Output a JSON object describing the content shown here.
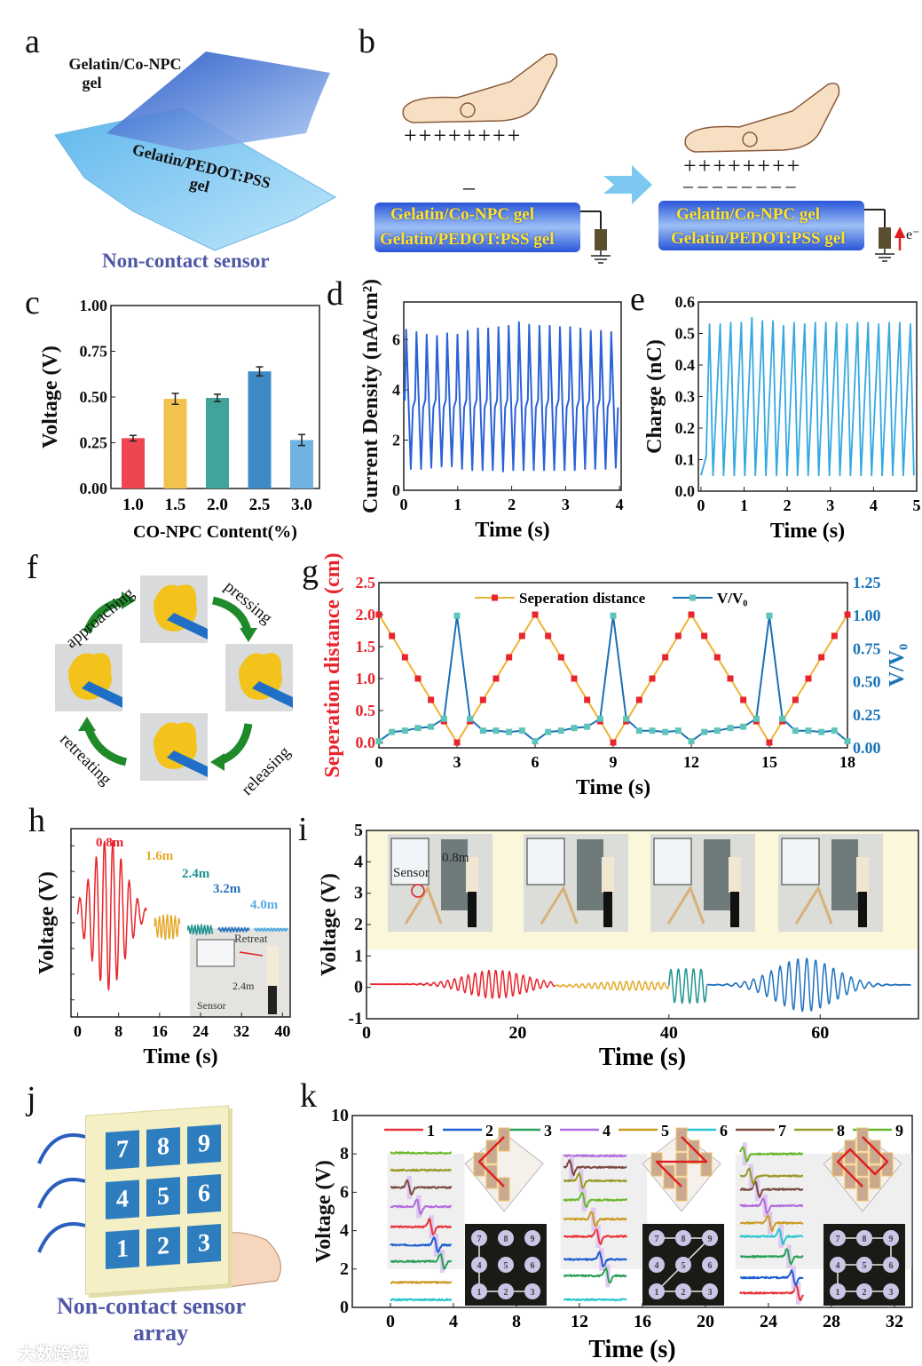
{
  "panel_labels": {
    "a": "a",
    "b": "b",
    "c": "c",
    "d": "d",
    "e": "e",
    "f": "f",
    "g": "g",
    "h": "h",
    "i": "i",
    "j": "j",
    "k": "k"
  },
  "a": {
    "top_gel_line1": "Gelatin/Co-NPC",
    "top_gel_line2": "gel",
    "bottom_gel_line1": "Gelatin/PEDOT:PSS",
    "bottom_gel_line2": "gel",
    "caption": "Non-contact sensor"
  },
  "b": {
    "plus_left": "++++++++",
    "minus_left": "–",
    "top_layer": "Gelatin/Co-NPC gel",
    "bottom_layer": "Gelatin/PEDOT:PSS gel",
    "plus_right": "++++++++",
    "minus_right": "– – – – – – – –",
    "electron": "e⁻"
  },
  "f": {
    "approaching": "approaching",
    "pressing": "pressing",
    "releasing": "releasing",
    "retreating": "retreating"
  },
  "h_inset": {
    "retreat": "Retreat",
    "distance": "2.4m",
    "sensor": "Sensor"
  },
  "i_inset": {
    "distance": "0.8m",
    "sensor": "Sensor"
  },
  "j": {
    "keys": [
      "7",
      "8",
      "9",
      "4",
      "5",
      "6",
      "1",
      "2",
      "3"
    ],
    "caption_line1": "Non-contact sensor",
    "caption_line2": "array"
  },
  "watermark": "大数跨境",
  "colors": {
    "caption": "#4f57a6",
    "red": "#e8242c",
    "blue": "#1a74b8"
  },
  "chart_data": [
    {
      "id": "c",
      "type": "bar",
      "categories": [
        "1.0",
        "1.5",
        "2.0",
        "2.5",
        "3.0"
      ],
      "values": [
        0.275,
        0.49,
        0.495,
        0.64,
        0.265
      ],
      "errors": [
        0.015,
        0.03,
        0.02,
        0.025,
        0.03
      ],
      "colors": [
        "#ee4650",
        "#f2c14e",
        "#42a39a",
        "#3e8ac6",
        "#6fb3e3"
      ],
      "xlabel": "CO-NPC Content(%)",
      "ylabel": "Voltage (V)",
      "ylim": [
        0,
        1
      ],
      "yticks": [
        "0.00",
        "0.25",
        "0.50",
        "0.75",
        "1.00"
      ]
    },
    {
      "id": "d",
      "type": "line",
      "xlabel": "Time (s)",
      "ylabel": "Current Density (nA/cm²)",
      "xlim": [
        0,
        4.03
      ],
      "ylim": [
        0,
        7.5
      ],
      "xticks": [
        "0",
        "1",
        "2",
        "3",
        "4"
      ],
      "yticks": [
        "0",
        "2",
        "4",
        "6"
      ],
      "color": "#2b62d6",
      "period": 0.19,
      "plateau": 3.6,
      "peaks": [
        6.4,
        6.3,
        6.2,
        6.15,
        6.25,
        6.2,
        6.35,
        6.45,
        6.45,
        6.5,
        6.55,
        6.7,
        6.6,
        6.55,
        6.55,
        6.5,
        6.5,
        6.45,
        6.35,
        6.35,
        6.3
      ],
      "troughs": [
        0.85,
        0.85,
        0.9,
        0.95,
        0.95,
        0.85,
        0.8,
        0.8,
        0.8,
        0.75,
        0.8,
        0.8,
        0.8,
        0.8,
        0.8,
        0.8,
        0.8,
        0.85,
        0.85,
        0.85,
        0.9
      ]
    },
    {
      "id": "e",
      "type": "line",
      "xlabel": "Time (s)",
      "ylabel": "Charge (nC)",
      "xlim": [
        -0.06,
        5
      ],
      "ylim": [
        0,
        0.6
      ],
      "xticks": [
        "0",
        "1",
        "2",
        "3",
        "4",
        "5"
      ],
      "yticks": [
        "0.0",
        "0.1",
        "0.2",
        "0.3",
        "0.4",
        "0.5",
        "0.6"
      ],
      "color": "#35a8e0",
      "period": 0.245,
      "start": 0.05,
      "peaks": [
        0.53,
        0.53,
        0.535,
        0.535,
        0.55,
        0.54,
        0.54,
        0.525,
        0.535,
        0.53,
        0.535,
        0.535,
        0.535,
        0.53,
        0.535,
        0.535,
        0.53,
        0.535,
        0.535,
        0.53
      ],
      "trough": 0.05
    },
    {
      "id": "g",
      "type": "line",
      "xlabel": "Time (s)",
      "ylabel": "Seperation distance (cm)",
      "ylabel_right": "V/V₀",
      "xlim": [
        0,
        18
      ],
      "ylim": [
        -0.083,
        2.5
      ],
      "ylim_right": [
        0,
        1.25
      ],
      "xticks": [
        "0",
        "3",
        "6",
        "9",
        "12",
        "15",
        "18"
      ],
      "yticks": [
        "0.0",
        "0.5",
        "1.0",
        "1.5",
        "2.0",
        "2.5"
      ],
      "yticks_right": [
        "0.00",
        "0.25",
        "0.50",
        "0.75",
        "1.00",
        "1.25"
      ],
      "legend_position": "top-center",
      "x": [
        0,
        0.5,
        1,
        1.5,
        2,
        2.5,
        3,
        3.5,
        4,
        4.5,
        5,
        5.5,
        6,
        6.5,
        7,
        7.5,
        8,
        8.5,
        9,
        9.5,
        10,
        10.5,
        11,
        11.5,
        12,
        12.5,
        13,
        13.5,
        14,
        14.5,
        15,
        15.5,
        16,
        16.5,
        17,
        17.5,
        18
      ],
      "series": [
        {
          "name": "Seperation distance",
          "axis": "left",
          "color": "#f0b232",
          "marker_color": "#e8242c",
          "values": [
            2,
            1.667,
            1.333,
            1,
            0.667,
            0.333,
            0,
            0.333,
            0.667,
            1,
            1.333,
            1.667,
            2,
            1.667,
            1.333,
            1,
            0.667,
            0.333,
            0,
            0.333,
            0.667,
            1,
            1.333,
            1.667,
            2,
            1.667,
            1.333,
            1,
            0.667,
            0.333,
            0,
            0.333,
            0.667,
            1,
            1.333,
            1.667,
            2
          ]
        },
        {
          "name": "V/V₀",
          "axis": "right",
          "color": "#1a6fb5",
          "marker_color": "#5ec4b8",
          "values": [
            0.05,
            0.12,
            0.13,
            0.15,
            0.16,
            0.22,
            1.0,
            0.22,
            0.13,
            0.13,
            0.12,
            0.13,
            0.05,
            0.12,
            0.13,
            0.15,
            0.16,
            0.22,
            1.0,
            0.22,
            0.13,
            0.13,
            0.12,
            0.13,
            0.05,
            0.12,
            0.13,
            0.15,
            0.16,
            0.22,
            1.0,
            0.22,
            0.13,
            0.13,
            0.12,
            0.13,
            0.05
          ]
        }
      ]
    },
    {
      "id": "h",
      "type": "line",
      "xlabel": "Time (s)",
      "ylabel": "Voltage (V)",
      "xlim": [
        -1.3,
        41.5
      ],
      "ylim": [
        -1.1,
        1.1
      ],
      "xticks": [
        "0",
        "8",
        "16",
        "24",
        "32",
        "40"
      ],
      "series": [
        {
          "name": "0.8m",
          "color": "#e8242c",
          "t0": 0,
          "t1": 13.5,
          "freq": 0.62,
          "amp": 0.88,
          "offset": 0.1,
          "center": 6,
          "width": 4.5
        },
        {
          "name": "1.6m",
          "color": "#e6a92a",
          "t0": 15,
          "t1": 20,
          "freq": 1.3,
          "amp": 0.14,
          "offset": -0.05,
          "center": 17.5,
          "width": 4
        },
        {
          "name": "2.4m",
          "color": "#1f9490",
          "t0": 21.5,
          "t1": 26.5,
          "freq": 1.6,
          "amp": 0.05,
          "offset": -0.08,
          "center": 24,
          "width": 5
        },
        {
          "name": "3.2m",
          "color": "#2a72c0",
          "t0": 27.5,
          "t1": 33.5,
          "freq": 1.6,
          "amp": 0.02,
          "offset": -0.08,
          "center": 30,
          "width": 5
        },
        {
          "name": "4.0m",
          "color": "#5aaee0",
          "t0": 34.5,
          "t1": 41,
          "freq": 1.6,
          "amp": 0.01,
          "offset": -0.08,
          "center": 37,
          "width": 5
        }
      ]
    },
    {
      "id": "i",
      "type": "line",
      "xlabel": "Time (s)",
      "ylabel": "Voltage (V)",
      "xlim": [
        0,
        73
      ],
      "ylim": [
        -1,
        5
      ],
      "xticks": [
        "0",
        "20",
        "40",
        "60"
      ],
      "yticks": [
        "-1",
        "0",
        "1",
        "2",
        "3",
        "4",
        "5"
      ],
      "series": [
        {
          "name": "segment-1",
          "color": "#e8242c",
          "t0": 0.5,
          "t1": 25,
          "freq": 1.1,
          "amp": 0.45,
          "offset": 0.1,
          "center": 17,
          "width": 5.5
        },
        {
          "name": "segment-2",
          "color": "#e6a92a",
          "t0": 25,
          "t1": 40,
          "freq": 1.2,
          "amp": 0.14,
          "offset": 0.05,
          "center": 35,
          "width": 7
        },
        {
          "name": "segment-3",
          "color": "#1f9490",
          "t0": 40,
          "t1": 45,
          "freq": 1.0,
          "amp": 0.55,
          "offset": 0.05,
          "center": 42.5,
          "width": 9
        },
        {
          "name": "segment-4",
          "color": "#1f72bf",
          "t0": 45,
          "t1": 72,
          "freq": 0.85,
          "amp": 0.85,
          "offset": 0.08,
          "center": 58,
          "width": 5.5
        }
      ]
    },
    {
      "id": "k",
      "type": "line",
      "xlabel": "Time (s)",
      "ylabel": "Voltage (V)",
      "xlim": [
        -2.42,
        33.13
      ],
      "ylim": [
        0,
        10
      ],
      "xticks": [
        "0",
        "4",
        "8",
        "12",
        "16",
        "20",
        "24",
        "28",
        "32"
      ],
      "yticks": [
        "0",
        "2",
        "4",
        "6",
        "8",
        "10"
      ],
      "channels": [
        {
          "name": "1",
          "color": "#e8333a"
        },
        {
          "name": "2",
          "color": "#1f5fd1"
        },
        {
          "name": "3",
          "color": "#2aa05a"
        },
        {
          "name": "4",
          "color": "#b06be0"
        },
        {
          "name": "5",
          "color": "#c99a1f"
        },
        {
          "name": "6",
          "color": "#2ac6d0"
        },
        {
          "name": "7",
          "color": "#7a4a42"
        },
        {
          "name": "8",
          "color": "#9a9a2a"
        },
        {
          "name": "9",
          "color": "#6ab82a"
        }
      ],
      "segments": [
        {
          "t0": 0,
          "t1": 3.9,
          "baselines": {
            "9": 8.05,
            "8": 7.15,
            "7": 6.25,
            "4": 5.25,
            "1": 4.2,
            "2": 3.25,
            "3": 2.4,
            "5": 1.3,
            "6": 0.4
          },
          "pulses": {
            "7": 1.2,
            "4": 1.8,
            "1": 2.6,
            "2": 2.9,
            "3": 3.3
          },
          "path": [
            "7",
            "4",
            "1",
            "2",
            "3"
          ]
        },
        {
          "t0": 11,
          "t1": 15,
          "baselines": {
            "4": 7.9,
            "7": 7.3,
            "8": 6.6,
            "9": 5.6,
            "5": 4.6,
            "1": 3.7,
            "2": 2.5,
            "3": 1.65,
            "6": 0.4
          },
          "pulses": {
            "7": 11.5,
            "8": 12.1,
            "9": 12.3,
            "5": 12.9,
            "1": 13.2,
            "2": 13.4,
            "3": 13.8
          },
          "path": [
            "7",
            "8",
            "9",
            "5",
            "1",
            "2",
            "3"
          ]
        },
        {
          "t0": 22.2,
          "t1": 26.2,
          "baselines": {
            "9": 8.0,
            "8": 6.85,
            "7": 6.15,
            "4": 5.3,
            "5": 4.4,
            "6": 3.7,
            "3": 2.65,
            "2": 1.55,
            "1": 0.75
          },
          "pulses": {
            "9": 22.5,
            "8": 22.9,
            "7": 23.3,
            "4": 23.8,
            "5": 24.1,
            "6": 24.8,
            "3": 25.3,
            "2": 25.6,
            "1": 25.9
          },
          "path": [
            "7",
            "8",
            "9",
            "6",
            "5",
            "4",
            "1",
            "2",
            "3"
          ]
        }
      ]
    }
  ]
}
